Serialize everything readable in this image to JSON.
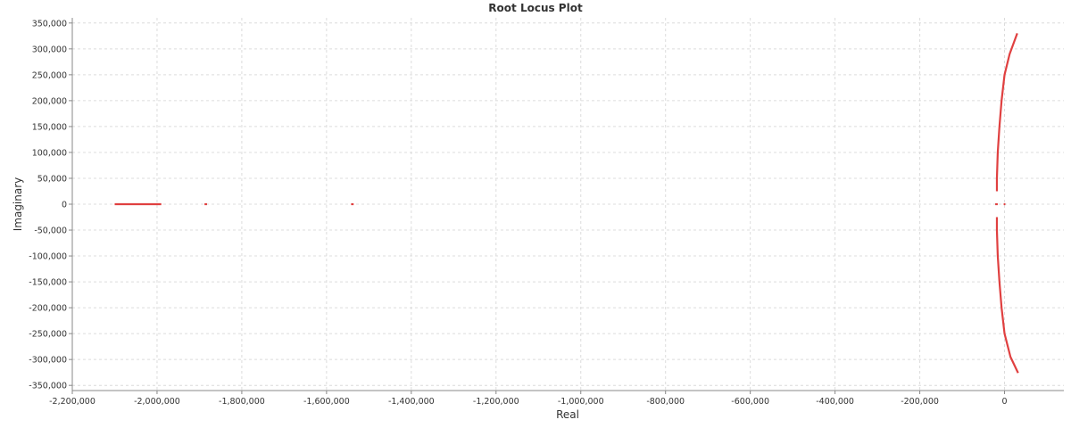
{
  "chart_data": {
    "type": "scatter",
    "title": "Root Locus Plot",
    "xlabel": "Real",
    "ylabel": "Imaginary",
    "xlim": [
      -2200000,
      140000
    ],
    "ylim": [
      -360000,
      360000
    ],
    "grid": true,
    "legend": "none",
    "series_color": "#e04040",
    "x_ticks": [
      {
        "value": -2200000,
        "label": "-2,200,000"
      },
      {
        "value": -2000000,
        "label": "-2,000,000"
      },
      {
        "value": -1800000,
        "label": "-1,800,000"
      },
      {
        "value": -1600000,
        "label": "-1,600,000"
      },
      {
        "value": -1400000,
        "label": "-1,400,000"
      },
      {
        "value": -1200000,
        "label": "-1,200,000"
      },
      {
        "value": -1000000,
        "label": "-1,000,000"
      },
      {
        "value": -800000,
        "label": "-800,000"
      },
      {
        "value": -600000,
        "label": "-600,000"
      },
      {
        "value": -400000,
        "label": "-400,000"
      },
      {
        "value": -200000,
        "label": "-200,000"
      },
      {
        "value": 0,
        "label": "0"
      }
    ],
    "y_ticks": [
      {
        "value": 350000,
        "label": "350,000"
      },
      {
        "value": 300000,
        "label": "300,000"
      },
      {
        "value": 250000,
        "label": "250,000"
      },
      {
        "value": 200000,
        "label": "200,000"
      },
      {
        "value": 150000,
        "label": "150,000"
      },
      {
        "value": 100000,
        "label": "100,000"
      },
      {
        "value": 50000,
        "label": "50,000"
      },
      {
        "value": 0,
        "label": "0"
      },
      {
        "value": -50000,
        "label": "-50,000"
      },
      {
        "value": -100000,
        "label": "-100,000"
      },
      {
        "value": -150000,
        "label": "-150,000"
      },
      {
        "value": -200000,
        "label": "-200,000"
      },
      {
        "value": -250000,
        "label": "-250,000"
      },
      {
        "value": -300000,
        "label": "-300,000"
      },
      {
        "value": -350000,
        "label": "-350,000"
      }
    ],
    "segments": [
      {
        "name": "real-axis-branch-1",
        "points": [
          [
            -2100000,
            0
          ],
          [
            -1990000,
            0
          ]
        ]
      },
      {
        "name": "real-axis-branch-2",
        "points": [
          [
            -1888000,
            0
          ],
          [
            -1882000,
            0
          ]
        ]
      },
      {
        "name": "real-axis-branch-3",
        "points": [
          [
            -1542000,
            0
          ],
          [
            -1536000,
            0
          ]
        ]
      },
      {
        "name": "real-axis-branch-4",
        "points": [
          [
            -22000,
            0
          ],
          [
            -16000,
            0
          ]
        ]
      },
      {
        "name": "real-axis-branch-5",
        "points": [
          [
            -2000,
            0
          ],
          [
            2000,
            0
          ]
        ]
      },
      {
        "name": "upper-complex-branch",
        "points": [
          [
            -18000,
            25000
          ],
          [
            -18000,
            50000
          ],
          [
            -16000,
            100000
          ],
          [
            -12000,
            150000
          ],
          [
            -7000,
            200000
          ],
          [
            0,
            250000
          ],
          [
            12000,
            290000
          ],
          [
            30000,
            330000
          ]
        ]
      },
      {
        "name": "lower-complex-branch",
        "points": [
          [
            -18000,
            -25000
          ],
          [
            -18000,
            -50000
          ],
          [
            -16000,
            -100000
          ],
          [
            -12000,
            -150000
          ],
          [
            -7000,
            -200000
          ],
          [
            0,
            -250000
          ],
          [
            14000,
            -295000
          ],
          [
            32000,
            -326000
          ]
        ]
      }
    ]
  }
}
